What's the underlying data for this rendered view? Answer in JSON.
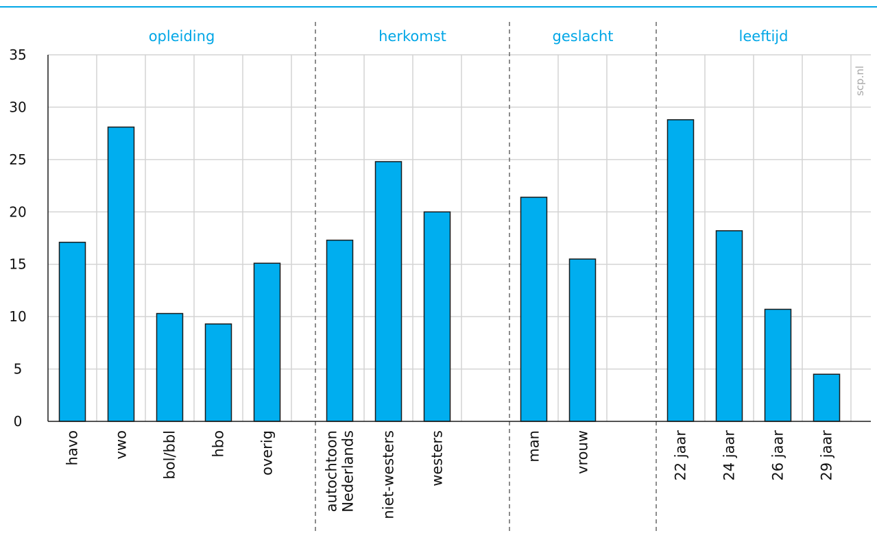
{
  "chart_data": {
    "type": "bar",
    "watermark": "scp.nl",
    "ylim": [
      0,
      35
    ],
    "yticks": [
      0,
      5,
      10,
      15,
      20,
      25,
      30,
      35
    ],
    "grid": true,
    "bar_color": "#00aeef",
    "accent_color": "#00a6e6",
    "groups": [
      {
        "name": "opleiding",
        "categories": [
          {
            "label": [
              "havo"
            ],
            "value": 17.1
          },
          {
            "label": [
              "vwo"
            ],
            "value": 28.1
          },
          {
            "label": [
              "bol/bbl"
            ],
            "value": 10.3
          },
          {
            "label": [
              "hbo"
            ],
            "value": 9.3
          },
          {
            "label": [
              "overig"
            ],
            "value": 15.1
          }
        ]
      },
      {
        "name": "herkomst",
        "categories": [
          {
            "label": [
              "autochtoon",
              "Nederlands"
            ],
            "value": 17.3
          },
          {
            "label": [
              "niet-westers"
            ],
            "value": 24.8
          },
          {
            "label": [
              "westers"
            ],
            "value": 20.0
          }
        ]
      },
      {
        "name": "geslacht",
        "categories": [
          {
            "label": [
              "man"
            ],
            "value": 21.4
          },
          {
            "label": [
              "vrouw"
            ],
            "value": 15.5
          }
        ]
      },
      {
        "name": "leeftijd",
        "categories": [
          {
            "label": [
              "22 jaar"
            ],
            "value": 28.8
          },
          {
            "label": [
              "24 jaar"
            ],
            "value": 18.2
          },
          {
            "label": [
              "26 jaar"
            ],
            "value": 10.7
          },
          {
            "label": [
              "29 jaar"
            ],
            "value": 4.5
          }
        ]
      }
    ]
  }
}
